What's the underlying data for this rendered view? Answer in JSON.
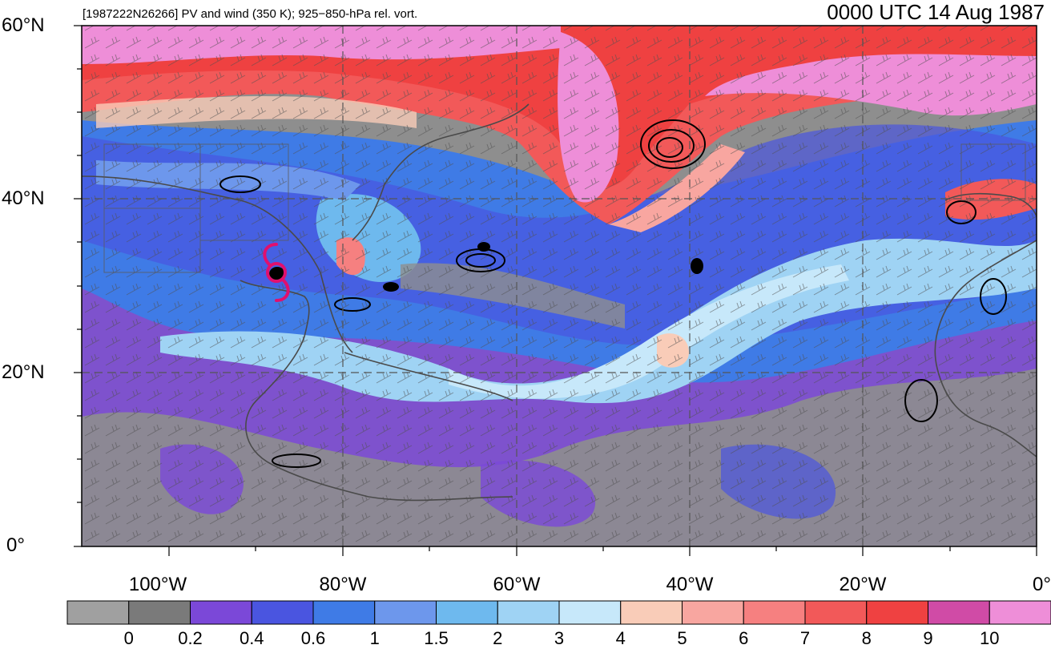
{
  "header": {
    "left_title": "[1987222N26266] PV and wind (350 K); 925−850-hPa rel. vort.",
    "right_title": "0000 UTC 14 Aug 1987"
  },
  "map": {
    "lat_labels": [
      "60°N",
      "40°N",
      "20°N",
      "0°"
    ],
    "lon_labels": [
      "100°W",
      "80°W",
      "60°W",
      "40°W",
      "20°W",
      "0°"
    ],
    "storm_symbol": "tropical-cyclone-icon",
    "storm_color": "#e0106e"
  },
  "colorbar": {
    "colors": [
      "#a0a0a0",
      "#7a7a7a",
      "#7b48d8",
      "#4a55e0",
      "#3f7be6",
      "#6d97ec",
      "#6eb9ee",
      "#9fd3f4",
      "#c7e8fa",
      "#f9ccb8",
      "#f8a6a0",
      "#f68080",
      "#f25959",
      "#ef4141",
      "#d04ba6",
      "#ee8ed8"
    ],
    "tick_labels": [
      "0",
      "0.2",
      "0.4",
      "0.6",
      "1",
      "1.5",
      "2",
      "3",
      "4",
      "5",
      "6",
      "7",
      "8",
      "9",
      "10"
    ]
  }
}
